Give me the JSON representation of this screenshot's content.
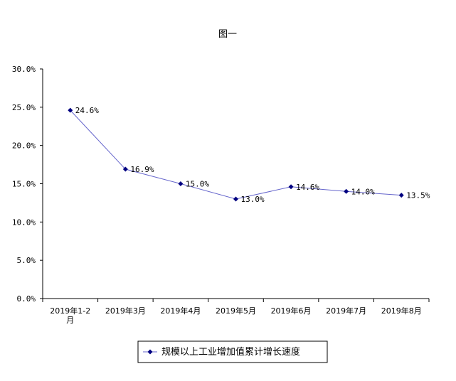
{
  "chart_data": {
    "type": "line",
    "title": "图一",
    "categories": [
      "2019年1-2月",
      "2019年3月",
      "2019年4月",
      "2019年5月",
      "2019年6月",
      "2019年7月",
      "2019年8月"
    ],
    "category_lines": [
      [
        "2019年1-2",
        "月"
      ],
      [
        "2019年3月"
      ],
      [
        "2019年4月"
      ],
      [
        "2019年5月"
      ],
      [
        "2019年6月"
      ],
      [
        "2019年7月"
      ],
      [
        "2019年8月"
      ]
    ],
    "series": [
      {
        "name": "规模以上工业增加值累计增长速度",
        "values": [
          24.6,
          16.9,
          15.0,
          13.0,
          14.6,
          14.0,
          13.5
        ],
        "labels": [
          "24.6%",
          "16.9%",
          "15.0%",
          "13.0%",
          "14.6%",
          "14.0%",
          "13.5%"
        ]
      }
    ],
    "ylim": [
      0,
      30
    ],
    "yticks": [
      0,
      5,
      10,
      15,
      20,
      25,
      30
    ],
    "ytick_labels": [
      "0.0%",
      "5.0%",
      "10.0%",
      "15.0%",
      "20.0%",
      "25.0%",
      "30.0%"
    ],
    "grid": false,
    "legend_position": "bottom",
    "colors": {
      "line": "#6666cc",
      "marker": "#000080",
      "axis": "#000000"
    }
  }
}
